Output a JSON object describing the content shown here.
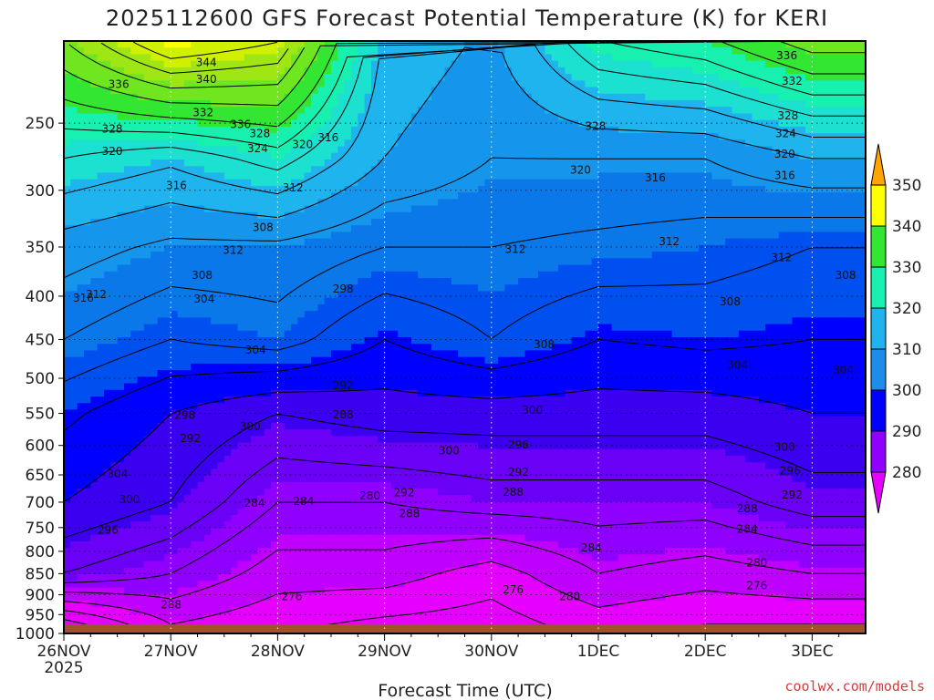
{
  "chart_data": {
    "type": "heatmap",
    "title": "2025112600 GFS Forecast Potential Temperature (K) for KERI",
    "xlabel": "Forecast Time (UTC)",
    "ylabel": "",
    "y_scale": "log",
    "y_reversed": true,
    "ylim": [
      1000,
      200
    ],
    "xlim": [
      "2025-11-26T00",
      "2025-12-03T12"
    ],
    "x_ticks": [
      "26NOV",
      "27NOV",
      "28NOV",
      "29NOV",
      "30NOV",
      "1DEC",
      "2DEC",
      "3DEC"
    ],
    "x_tick_year": "2025",
    "y_ticks": [
      250,
      300,
      350,
      400,
      450,
      500,
      550,
      600,
      650,
      700,
      750,
      800,
      850,
      900,
      950,
      1000
    ],
    "grid": true,
    "colorbar": {
      "placement": "right",
      "levels": [
        280,
        290,
        300,
        310,
        320,
        330,
        340,
        350
      ],
      "colors": [
        "#e600ff",
        "#9000ff",
        "#5000f0",
        "#0000ff",
        "#0a64e8",
        "#1fb4ee",
        "#18f0b0",
        "#32e632",
        "#a0e614",
        "#ffff00",
        "#ffa500"
      ]
    },
    "ground_color": "#a0522d",
    "ground_top_pressure": 975,
    "isentropes_K": {
      "26NOV": [
        270,
        292,
        300,
        305,
        312,
        318,
        328,
        338
      ],
      "27NOV": [
        280,
        288,
        296,
        300,
        308,
        315,
        325,
        345
      ],
      "28NOV": [
        277,
        282,
        288,
        296,
        310,
        315,
        330,
        344
      ],
      "29NOV": [
        275,
        282,
        288,
        298,
        304,
        312,
        320,
        322
      ],
      "30NOV": [
        274,
        278,
        290,
        298,
        308,
        312,
        316,
        318
      ],
      "1DEC": [
        278,
        284,
        290,
        298,
        304,
        311,
        316,
        326
      ],
      "2DEC": [
        276,
        282,
        290,
        298,
        305,
        310,
        316,
        328
      ],
      "3DEC": [
        276,
        284,
        294,
        300,
        304,
        308,
        320,
        334
      ]
    },
    "isentrope_pressures_hPa": [
      975,
      850,
      700,
      550,
      450,
      350,
      275,
      225
    ],
    "contour_labels": [
      {
        "text": "344",
        "t": 1.15,
        "p": 212
      },
      {
        "text": "340",
        "t": 1.15,
        "p": 222
      },
      {
        "text": "336",
        "t": 0.33,
        "p": 225
      },
      {
        "text": "328",
        "t": 0.27,
        "p": 254
      },
      {
        "text": "320",
        "t": 0.27,
        "p": 270
      },
      {
        "text": "332",
        "t": 1.12,
        "p": 243
      },
      {
        "text": "336",
        "t": 1.47,
        "p": 251
      },
      {
        "text": "328",
        "t": 1.65,
        "p": 257
      },
      {
        "text": "324",
        "t": 1.63,
        "p": 268
      },
      {
        "text": "320",
        "t": 2.05,
        "p": 265
      },
      {
        "text": "316",
        "t": 2.29,
        "p": 260
      },
      {
        "text": "316",
        "t": 0.87,
        "p": 296
      },
      {
        "text": "312",
        "t": 1.96,
        "p": 298
      },
      {
        "text": "308",
        "t": 1.68,
        "p": 332
      },
      {
        "text": "312",
        "t": 1.4,
        "p": 353
      },
      {
        "text": "312",
        "t": 0.12,
        "p": 398
      },
      {
        "text": "316",
        "t": 0.0,
        "p": 402
      },
      {
        "text": "308",
        "t": 1.11,
        "p": 378
      },
      {
        "text": "304",
        "t": 1.13,
        "p": 403
      },
      {
        "text": "298",
        "t": 2.43,
        "p": 392
      },
      {
        "text": "304",
        "t": 1.61,
        "p": 463
      },
      {
        "text": "312",
        "t": 4.04,
        "p": 352
      },
      {
        "text": "308",
        "t": 4.31,
        "p": 456
      },
      {
        "text": "328",
        "t": 4.79,
        "p": 252
      },
      {
        "text": "320",
        "t": 4.65,
        "p": 284
      },
      {
        "text": "316",
        "t": 5.35,
        "p": 290
      },
      {
        "text": "312",
        "t": 5.48,
        "p": 345
      },
      {
        "text": "308",
        "t": 6.05,
        "p": 406
      },
      {
        "text": "304",
        "t": 6.12,
        "p": 482
      },
      {
        "text": "312",
        "t": 6.53,
        "p": 360
      },
      {
        "text": "336",
        "t": 6.58,
        "p": 208
      },
      {
        "text": "332",
        "t": 6.63,
        "p": 223
      },
      {
        "text": "328",
        "t": 6.59,
        "p": 245
      },
      {
        "text": "324",
        "t": 6.57,
        "p": 257
      },
      {
        "text": "320",
        "t": 6.56,
        "p": 272
      },
      {
        "text": "316",
        "t": 6.56,
        "p": 288
      },
      {
        "text": "308",
        "t": 7.13,
        "p": 378
      },
      {
        "text": "304",
        "t": 7.11,
        "p": 489
      },
      {
        "text": "292",
        "t": 2.43,
        "p": 510
      },
      {
        "text": "288",
        "t": 2.43,
        "p": 552
      },
      {
        "text": "300",
        "t": 1.56,
        "p": 570
      },
      {
        "text": "298",
        "t": 0.95,
        "p": 553
      },
      {
        "text": "292",
        "t": 1.0,
        "p": 589
      },
      {
        "text": "300",
        "t": 4.2,
        "p": 545
      },
      {
        "text": "300",
        "t": 3.42,
        "p": 609
      },
      {
        "text": "296",
        "t": 4.07,
        "p": 599
      },
      {
        "text": "292",
        "t": 4.07,
        "p": 645
      },
      {
        "text": "292",
        "t": 3.0,
        "p": 682
      },
      {
        "text": "288",
        "t": 4.02,
        "p": 681
      },
      {
        "text": "288",
        "t": 3.05,
        "p": 722
      },
      {
        "text": "284",
        "t": 2.06,
        "p": 698
      },
      {
        "text": "284",
        "t": 1.6,
        "p": 702
      },
      {
        "text": "280",
        "t": 2.68,
        "p": 688
      },
      {
        "text": "304",
        "t": 0.32,
        "p": 648
      },
      {
        "text": "300",
        "t": 0.43,
        "p": 695
      },
      {
        "text": "296",
        "t": 0.23,
        "p": 755
      },
      {
        "text": "300",
        "t": 6.56,
        "p": 603
      },
      {
        "text": "296",
        "t": 6.61,
        "p": 643
      },
      {
        "text": "292",
        "t": 6.63,
        "p": 686
      },
      {
        "text": "288",
        "t": 6.21,
        "p": 712
      },
      {
        "text": "284",
        "t": 6.21,
        "p": 753
      },
      {
        "text": "284",
        "t": 4.75,
        "p": 792
      },
      {
        "text": "280",
        "t": 6.3,
        "p": 825
      },
      {
        "text": "276",
        "t": 6.3,
        "p": 878
      },
      {
        "text": "276",
        "t": 4.02,
        "p": 888
      },
      {
        "text": "280",
        "t": 4.55,
        "p": 905
      },
      {
        "text": "276",
        "t": 1.95,
        "p": 905
      },
      {
        "text": "288",
        "t": 0.82,
        "p": 925
      }
    ],
    "credit": "coolwx.com/models"
  }
}
